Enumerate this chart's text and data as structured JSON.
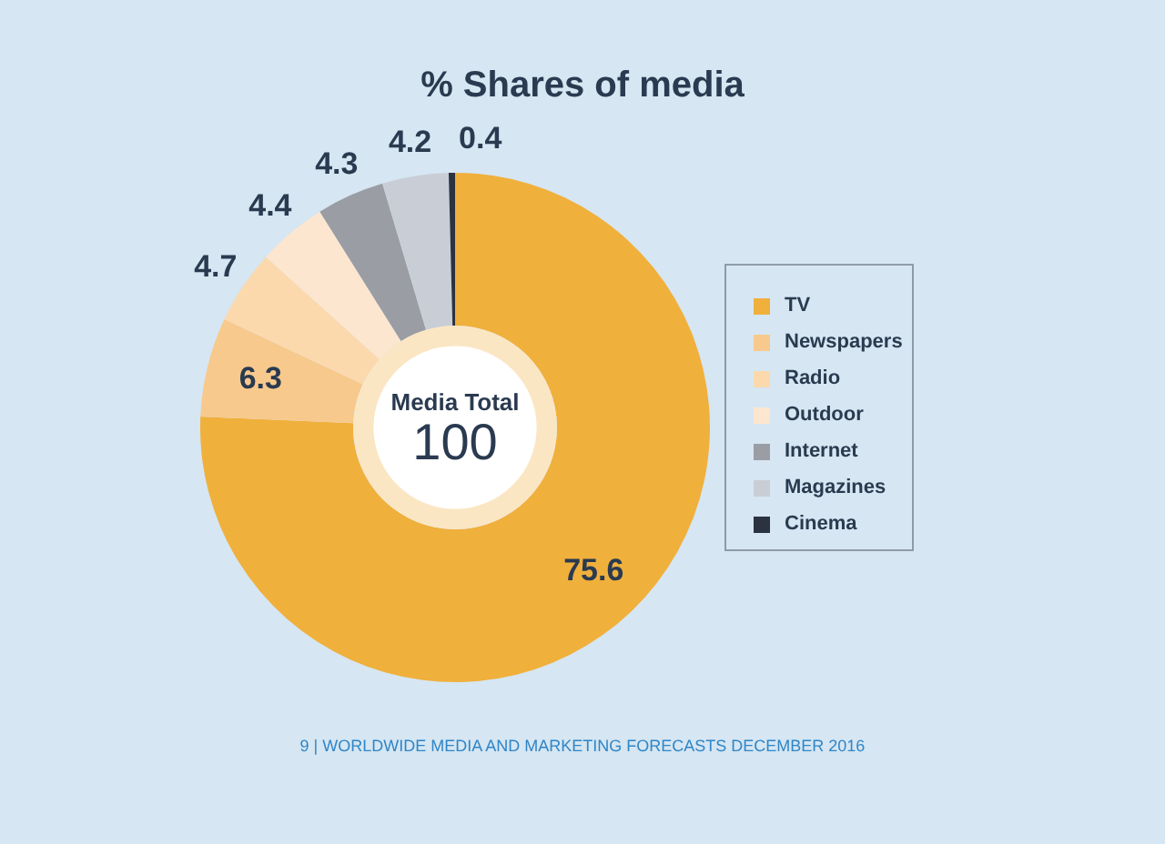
{
  "chart_data": {
    "type": "donut",
    "title": "% Shares of media",
    "categories": [
      "TV",
      "Newspapers",
      "Radio",
      "Outdoor",
      "Internet",
      "Magazines",
      "Cinema"
    ],
    "values": [
      75.6,
      6.3,
      4.7,
      4.4,
      4.3,
      4.2,
      0.4
    ],
    "colors": [
      "#f0b03c",
      "#f8c98c",
      "#fbd9ad",
      "#fde6cf",
      "#9b9da4",
      "#c9ced6",
      "#2b3240"
    ],
    "data_labels": true,
    "legend": "right",
    "annotations": [
      "Media Total",
      "100",
      "9 | WORLDWIDE MEDIA AND MARKETING FORECASTS DECEMBER 2016"
    ]
  }
}
